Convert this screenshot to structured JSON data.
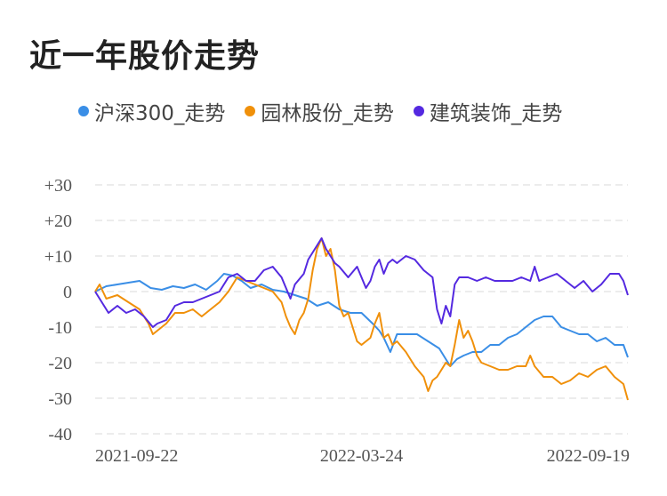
{
  "title": "近一年股价走势",
  "chart_data": {
    "type": "line",
    "title": "近一年股价走势",
    "xlabel": "",
    "ylabel": "",
    "x_tick_labels": [
      "2021-09-22",
      "2022-03-24",
      "2022-09-19"
    ],
    "y_ticks": [
      30,
      20,
      10,
      0,
      -10,
      -20,
      -30,
      -40
    ],
    "y_tick_labels": [
      "+30",
      "+20",
      "+10",
      "0",
      "-10",
      "-20",
      "-30",
      "-40"
    ],
    "ylim": [
      -40,
      30
    ],
    "grid": true,
    "legend_position": "top",
    "x_index_range": [
      0,
      240
    ],
    "series": [
      {
        "name": "沪深300_走势",
        "color": "#3a8ee6",
        "points": [
          [
            0,
            0
          ],
          [
            5,
            1.5
          ],
          [
            10,
            2
          ],
          [
            15,
            2.5
          ],
          [
            20,
            3
          ],
          [
            25,
            1
          ],
          [
            30,
            0.5
          ],
          [
            35,
            1.5
          ],
          [
            40,
            1
          ],
          [
            45,
            2
          ],
          [
            50,
            0.5
          ],
          [
            55,
            3
          ],
          [
            58,
            5
          ],
          [
            62,
            4.5
          ],
          [
            66,
            3
          ],
          [
            70,
            1
          ],
          [
            75,
            2
          ],
          [
            80,
            0.5
          ],
          [
            85,
            0
          ],
          [
            90,
            -1
          ],
          [
            95,
            -2
          ],
          [
            100,
            -4
          ],
          [
            105,
            -3
          ],
          [
            110,
            -5
          ],
          [
            115,
            -6
          ],
          [
            120,
            -6
          ],
          [
            125,
            -9
          ],
          [
            128,
            -11
          ],
          [
            130,
            -13
          ],
          [
            133,
            -17
          ],
          [
            136,
            -12
          ],
          [
            140,
            -12
          ],
          [
            145,
            -12
          ],
          [
            150,
            -14
          ],
          [
            155,
            -16
          ],
          [
            158,
            -19
          ],
          [
            160,
            -21
          ],
          [
            163,
            -19
          ],
          [
            166,
            -18
          ],
          [
            170,
            -17
          ],
          [
            174,
            -17
          ],
          [
            178,
            -15
          ],
          [
            182,
            -15
          ],
          [
            186,
            -13
          ],
          [
            190,
            -12
          ],
          [
            194,
            -10
          ],
          [
            198,
            -8
          ],
          [
            202,
            -7
          ],
          [
            206,
            -7
          ],
          [
            210,
            -10
          ],
          [
            214,
            -11
          ],
          [
            218,
            -12
          ],
          [
            222,
            -12
          ],
          [
            226,
            -14
          ],
          [
            230,
            -13
          ],
          [
            234,
            -15
          ],
          [
            238,
            -15
          ],
          [
            240,
            -18.5
          ]
        ]
      },
      {
        "name": "园林股份_走势",
        "color": "#f0900a",
        "points": [
          [
            0,
            0
          ],
          [
            2,
            2
          ],
          [
            5,
            -2
          ],
          [
            10,
            -1
          ],
          [
            15,
            -3
          ],
          [
            20,
            -5
          ],
          [
            24,
            -9
          ],
          [
            26,
            -12
          ],
          [
            28,
            -11
          ],
          [
            32,
            -9
          ],
          [
            36,
            -6
          ],
          [
            40,
            -6
          ],
          [
            44,
            -5
          ],
          [
            48,
            -7
          ],
          [
            52,
            -5
          ],
          [
            56,
            -3
          ],
          [
            60,
            0
          ],
          [
            64,
            4
          ],
          [
            68,
            3
          ],
          [
            72,
            2
          ],
          [
            76,
            1
          ],
          [
            80,
            0
          ],
          [
            84,
            -3
          ],
          [
            86,
            -7
          ],
          [
            88,
            -10
          ],
          [
            90,
            -12
          ],
          [
            92,
            -8
          ],
          [
            94,
            -6
          ],
          [
            96,
            -2
          ],
          [
            98,
            6
          ],
          [
            100,
            12
          ],
          [
            102,
            15
          ],
          [
            104,
            10
          ],
          [
            106,
            12
          ],
          [
            108,
            6
          ],
          [
            110,
            -4
          ],
          [
            112,
            -7
          ],
          [
            114,
            -6
          ],
          [
            116,
            -10
          ],
          [
            118,
            -14
          ],
          [
            120,
            -15
          ],
          [
            124,
            -13
          ],
          [
            126,
            -9
          ],
          [
            128,
            -6
          ],
          [
            130,
            -13
          ],
          [
            132,
            -12
          ],
          [
            134,
            -15
          ],
          [
            136,
            -14
          ],
          [
            140,
            -17
          ],
          [
            144,
            -21
          ],
          [
            148,
            -24
          ],
          [
            150,
            -28
          ],
          [
            152,
            -25
          ],
          [
            154,
            -24
          ],
          [
            156,
            -22
          ],
          [
            158,
            -20
          ],
          [
            160,
            -21
          ],
          [
            162,
            -15
          ],
          [
            164,
            -8
          ],
          [
            166,
            -13
          ],
          [
            168,
            -11
          ],
          [
            170,
            -14
          ],
          [
            172,
            -18
          ],
          [
            174,
            -20
          ],
          [
            178,
            -21
          ],
          [
            182,
            -22
          ],
          [
            186,
            -22
          ],
          [
            190,
            -21
          ],
          [
            194,
            -21
          ],
          [
            196,
            -18
          ],
          [
            198,
            -21
          ],
          [
            202,
            -24
          ],
          [
            206,
            -24
          ],
          [
            210,
            -26
          ],
          [
            214,
            -25
          ],
          [
            218,
            -23
          ],
          [
            222,
            -24
          ],
          [
            226,
            -22
          ],
          [
            230,
            -21
          ],
          [
            234,
            -24
          ],
          [
            238,
            -26
          ],
          [
            240,
            -30.5
          ]
        ]
      },
      {
        "name": "建筑装饰_走势",
        "color": "#5429e0",
        "points": [
          [
            0,
            0
          ],
          [
            3,
            -3
          ],
          [
            6,
            -6
          ],
          [
            10,
            -4
          ],
          [
            14,
            -6
          ],
          [
            18,
            -5
          ],
          [
            22,
            -7
          ],
          [
            26,
            -10
          ],
          [
            28,
            -9
          ],
          [
            32,
            -8
          ],
          [
            36,
            -4
          ],
          [
            40,
            -3
          ],
          [
            44,
            -3
          ],
          [
            48,
            -2
          ],
          [
            52,
            -1
          ],
          [
            56,
            0
          ],
          [
            60,
            4
          ],
          [
            64,
            5
          ],
          [
            68,
            3
          ],
          [
            72,
            3
          ],
          [
            76,
            6
          ],
          [
            80,
            7
          ],
          [
            84,
            4
          ],
          [
            86,
            1
          ],
          [
            88,
            -2
          ],
          [
            90,
            2
          ],
          [
            94,
            5
          ],
          [
            96,
            9
          ],
          [
            100,
            13
          ],
          [
            102,
            15
          ],
          [
            104,
            12
          ],
          [
            106,
            10
          ],
          [
            108,
            8
          ],
          [
            110,
            7
          ],
          [
            114,
            4
          ],
          [
            118,
            7
          ],
          [
            122,
            1
          ],
          [
            124,
            3
          ],
          [
            126,
            7
          ],
          [
            128,
            9
          ],
          [
            130,
            5
          ],
          [
            132,
            8
          ],
          [
            134,
            9
          ],
          [
            136,
            8
          ],
          [
            140,
            10
          ],
          [
            144,
            9
          ],
          [
            148,
            6
          ],
          [
            152,
            4
          ],
          [
            154,
            -5
          ],
          [
            156,
            -9
          ],
          [
            158,
            -4
          ],
          [
            160,
            -7
          ],
          [
            162,
            2
          ],
          [
            164,
            4
          ],
          [
            168,
            4
          ],
          [
            172,
            3
          ],
          [
            176,
            4
          ],
          [
            180,
            3
          ],
          [
            184,
            3
          ],
          [
            188,
            3
          ],
          [
            192,
            4
          ],
          [
            196,
            3
          ],
          [
            198,
            7
          ],
          [
            200,
            3
          ],
          [
            204,
            4
          ],
          [
            208,
            5
          ],
          [
            212,
            3
          ],
          [
            216,
            1
          ],
          [
            220,
            3
          ],
          [
            224,
            0
          ],
          [
            228,
            2
          ],
          [
            232,
            5
          ],
          [
            236,
            5
          ],
          [
            238,
            3
          ],
          [
            240,
            -1
          ]
        ]
      }
    ]
  }
}
